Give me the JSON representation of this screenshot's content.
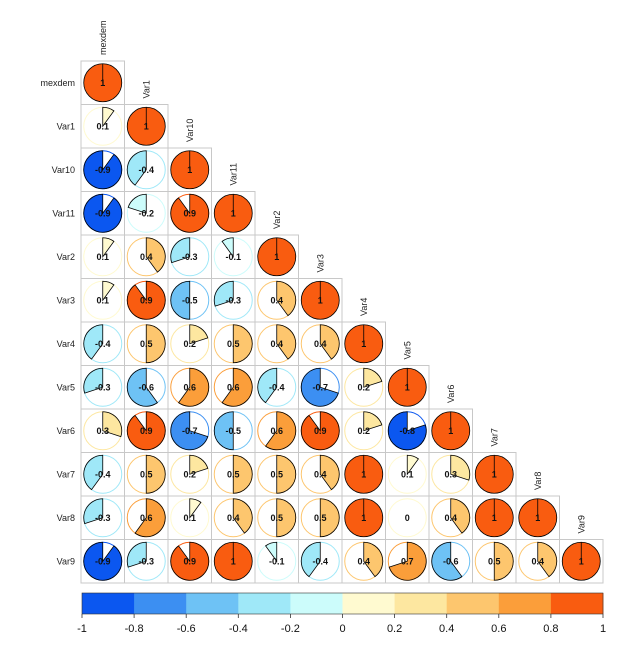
{
  "chart_data": {
    "type": "heatmap",
    "method": "pie",
    "layout": "lower-triangle",
    "title": "",
    "variables": [
      "mexdem",
      "Var1",
      "Var10",
      "Var11",
      "Var2",
      "Var3",
      "Var4",
      "Var5",
      "Var6",
      "Var7",
      "Var8",
      "Var9"
    ],
    "matrix": [
      [
        "1"
      ],
      [
        "0.1",
        "1"
      ],
      [
        "-0.9",
        "-0.4",
        "1"
      ],
      [
        "-0.9",
        "-0.2",
        "0.9",
        "1"
      ],
      [
        "0.1",
        "0.4",
        "-0.3",
        "-0.1",
        "1"
      ],
      [
        "0.1",
        "0.9",
        "-0.5",
        "-0.3",
        "0.4",
        "1"
      ],
      [
        "-0.4",
        "0.5",
        "0.2",
        "0.5",
        "0.4",
        "0.4",
        "1"
      ],
      [
        "-0.3",
        "-0.6",
        "0.6",
        "0.6",
        "-0.4",
        "-0.7",
        "0.2",
        "1"
      ],
      [
        "0.3",
        "0.9",
        "-0.7",
        "-0.5",
        "0.6",
        "0.9",
        "0.2",
        "-0.8",
        "1"
      ],
      [
        "-0.4",
        "0.5",
        "0.2",
        "0.5",
        "0.5",
        "0.4",
        "1",
        "0.1",
        "0.3",
        "1"
      ],
      [
        "-0.3",
        "0.6",
        "0.1",
        "0.4",
        "0.5",
        "0.5",
        "1",
        "0",
        "0.4",
        "1",
        "1"
      ],
      [
        "-0.9",
        "-0.3",
        "0.9",
        "1",
        "-0.1",
        "-0.4",
        "0.4",
        "0.7",
        "-0.6",
        "0.5",
        "0.4",
        "1"
      ]
    ],
    "colorbar": {
      "min": -1,
      "max": 1,
      "ticks": [
        "-1",
        "-0.8",
        "-0.6",
        "-0.4",
        "-0.2",
        "0",
        "0.2",
        "0.4",
        "0.6",
        "0.8",
        "1"
      ],
      "colors": [
        "#0b57f0",
        "#3c8ff2",
        "#6ec2f5",
        "#9fe8f8",
        "#ccfcfb",
        "#fffad0",
        "#fde7a0",
        "#fdc66e",
        "#fb9e3a",
        "#f95c10"
      ]
    }
  }
}
